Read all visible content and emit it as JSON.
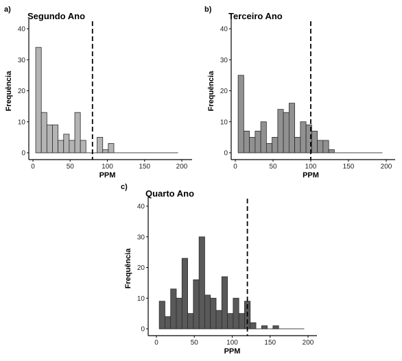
{
  "chart_data": [
    {
      "panel": "a)",
      "type": "histogram",
      "title": "Segundo Ano",
      "xlabel": "PPM",
      "ylabel": "Frequência",
      "xlim": [
        -10,
        200
      ],
      "ylim": [
        0,
        42
      ],
      "xticks": [
        0,
        50,
        100,
        150,
        200
      ],
      "yticks": [
        0,
        10,
        20,
        30,
        40
      ],
      "bin_width": 7.5,
      "bin_starts": [
        3.75,
        11.25,
        18.75,
        26.25,
        33.75,
        41.25,
        48.75,
        56.25,
        63.75,
        71.25,
        78.75,
        86.25,
        93.75,
        101.25
      ],
      "values": [
        34,
        13,
        9,
        9,
        4,
        6,
        4,
        13,
        4,
        0,
        0,
        5,
        1,
        3
      ],
      "baseline_to": 195,
      "cutoff": 80,
      "bar_color": "#b4b4b4"
    },
    {
      "panel": "b)",
      "type": "histogram",
      "title": "Terceiro Ano",
      "xlabel": "PPM",
      "ylabel": "Frequência",
      "xlim": [
        -10,
        200
      ],
      "ylim": [
        0,
        42
      ],
      "xticks": [
        0,
        50,
        100,
        150,
        200
      ],
      "yticks": [
        0,
        10,
        20,
        30,
        40
      ],
      "bin_width": 7.5,
      "bin_starts": [
        3.75,
        11.25,
        18.75,
        26.25,
        33.75,
        41.25,
        48.75,
        56.25,
        63.75,
        71.25,
        78.75,
        86.25,
        93.75,
        101.25,
        108.75,
        116.25,
        123.75
      ],
      "values": [
        25,
        7,
        5,
        7,
        10,
        3,
        5,
        14,
        13,
        16,
        5,
        10,
        9,
        7,
        4,
        4,
        1
      ],
      "baseline_to": 195,
      "cutoff": 100,
      "bar_color": "#919191"
    },
    {
      "panel": "c)",
      "type": "histogram",
      "title": "Quarto Ano",
      "xlabel": "PPM",
      "ylabel": "Frequência",
      "xlim": [
        -10,
        200
      ],
      "ylim": [
        0,
        42
      ],
      "xticks": [
        0,
        50,
        100,
        150,
        200
      ],
      "yticks": [
        0,
        10,
        20,
        30,
        40
      ],
      "bin_width": 7.5,
      "bin_starts": [
        3.75,
        11.25,
        18.75,
        26.25,
        33.75,
        41.25,
        48.75,
        56.25,
        63.75,
        71.25,
        78.75,
        86.25,
        93.75,
        101.25,
        108.75,
        116.25,
        123.75,
        131.25,
        138.75,
        146.25,
        153.75
      ],
      "values": [
        9,
        4,
        13,
        10,
        23,
        5,
        16,
        30,
        11,
        10,
        6,
        17,
        5,
        10,
        5,
        9,
        2,
        0,
        1,
        0,
        1
      ],
      "baseline_to": 195,
      "cutoff": 120,
      "bar_color": "#595959"
    }
  ]
}
